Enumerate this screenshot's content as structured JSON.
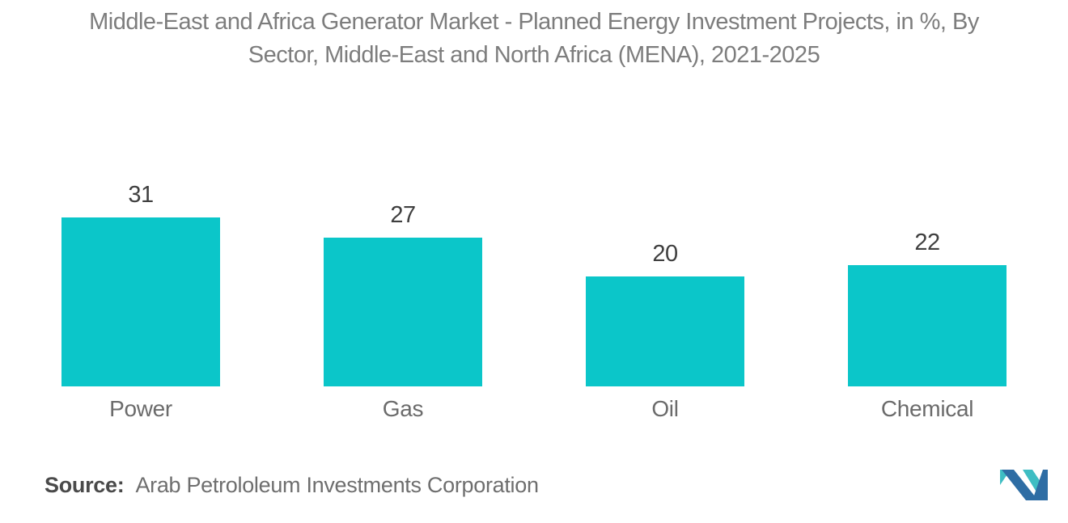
{
  "title": {
    "line1": "Middle-East and Africa Generator Market - Planned Energy Investment Projects, in %, By",
    "line2": "Sector, Middle-East and North Africa (MENA), 2021-2025"
  },
  "chart_data": {
    "type": "bar",
    "title": "Middle-East and Africa Generator Market - Planned Energy Investment Projects, in %, By Sector, Middle-East and North Africa (MENA), 2021-2025",
    "categories": [
      "Power",
      "Gas",
      "Oil",
      "Chemical"
    ],
    "values": [
      31,
      27,
      20,
      22
    ],
    "unit": "%",
    "bar_color": "#0bc6c9",
    "ylim": [
      0,
      35
    ],
    "grid": false,
    "legend": false,
    "value_labels_position": "above",
    "xlabel": "",
    "ylabel": ""
  },
  "footer": {
    "source_label": "Source:",
    "source_text": "Arab Petrololeum Investments Corporation"
  },
  "logo": {
    "name": "mordor-intelligence-logo",
    "blue": "#2e6da4",
    "teal": "#3ebdc3"
  },
  "colors": {
    "background": "#ffffff",
    "title_text": "#7d7d7d",
    "value_label_text": "#3f3f3f",
    "category_label_text": "#6b6b6b",
    "source_label_text": "#4a4a4a",
    "source_text": "#6e6e6e"
  }
}
